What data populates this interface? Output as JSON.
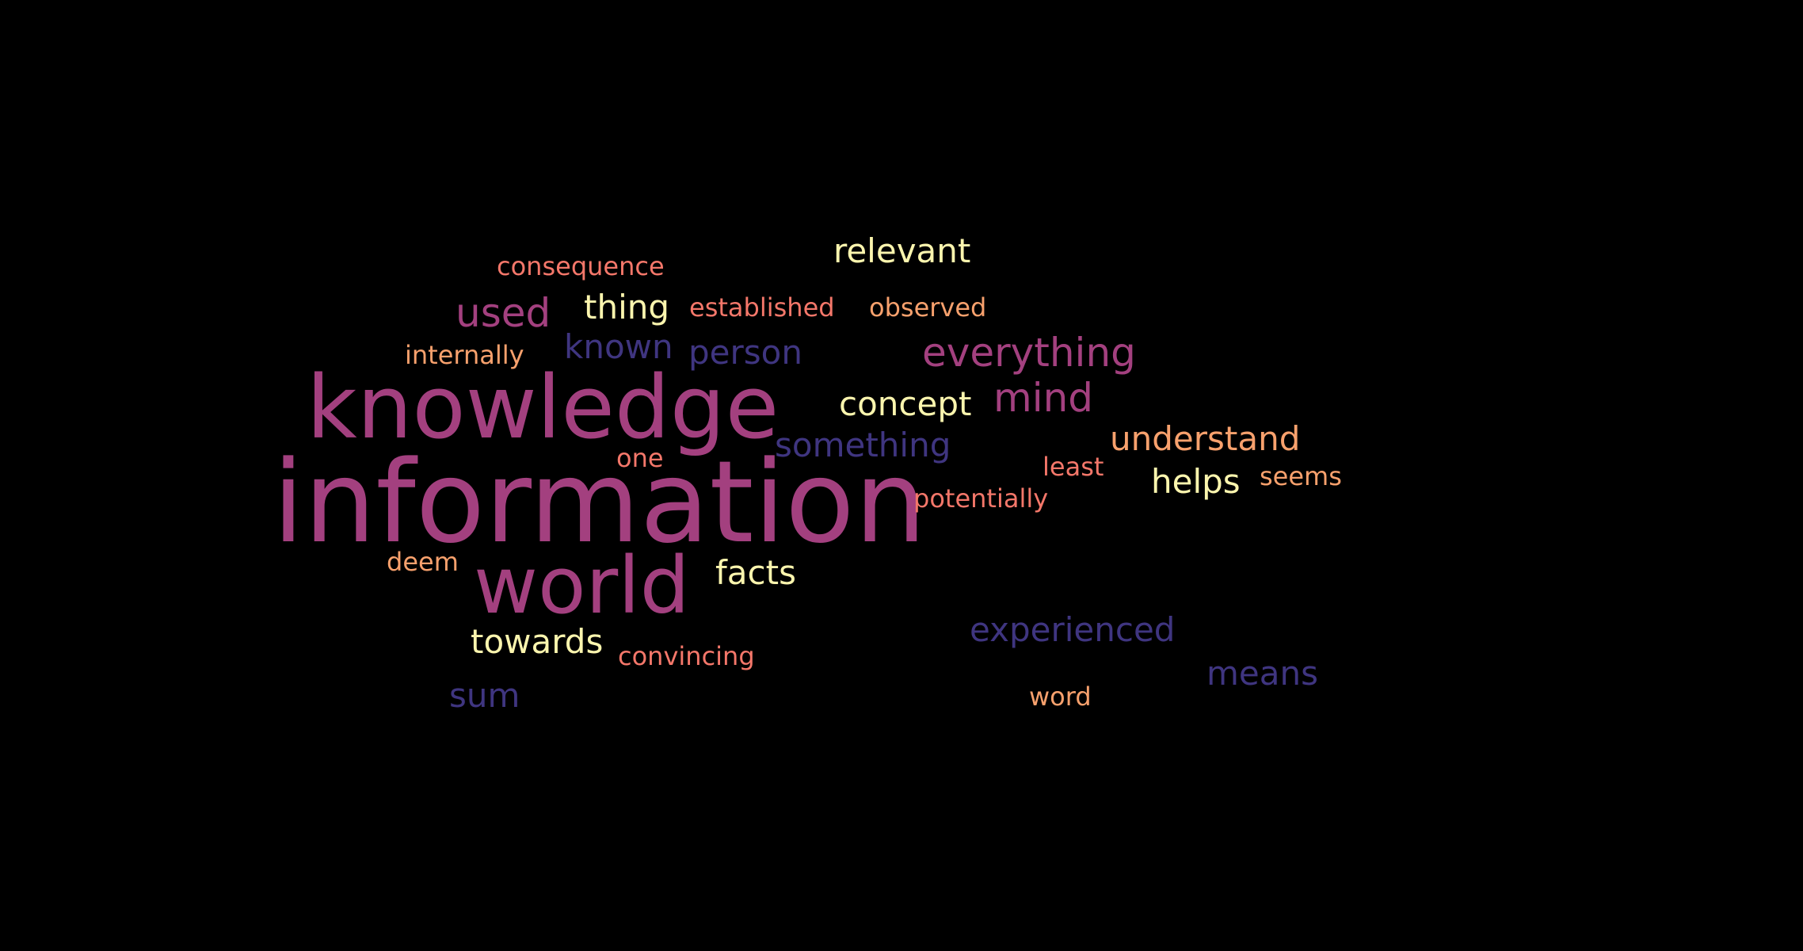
{
  "background": "#000000",
  "palette": {
    "magenta": "#A3407F",
    "indigo": "#3F3580",
    "yellow": "#FBF5AE",
    "orange": "#F8A16D",
    "salmon": "#F4776A"
  },
  "words": [
    {
      "text": "information"
    },
    {
      "text": "knowledge"
    },
    {
      "text": "world"
    },
    {
      "text": "everything"
    },
    {
      "text": "mind"
    },
    {
      "text": "used"
    },
    {
      "text": "known"
    },
    {
      "text": "person"
    },
    {
      "text": "something"
    },
    {
      "text": "experienced"
    },
    {
      "text": "means"
    },
    {
      "text": "sum"
    },
    {
      "text": "relevant"
    },
    {
      "text": "thing"
    },
    {
      "text": "concept"
    },
    {
      "text": "helps"
    },
    {
      "text": "facts"
    },
    {
      "text": "towards"
    },
    {
      "text": "understand"
    },
    {
      "text": "consequence"
    },
    {
      "text": "established"
    },
    {
      "text": "observed"
    },
    {
      "text": "internally"
    },
    {
      "text": "one"
    },
    {
      "text": "least"
    },
    {
      "text": "seems"
    },
    {
      "text": "potentially"
    },
    {
      "text": "deem"
    },
    {
      "text": "convincing"
    },
    {
      "text": "word"
    }
  ]
}
